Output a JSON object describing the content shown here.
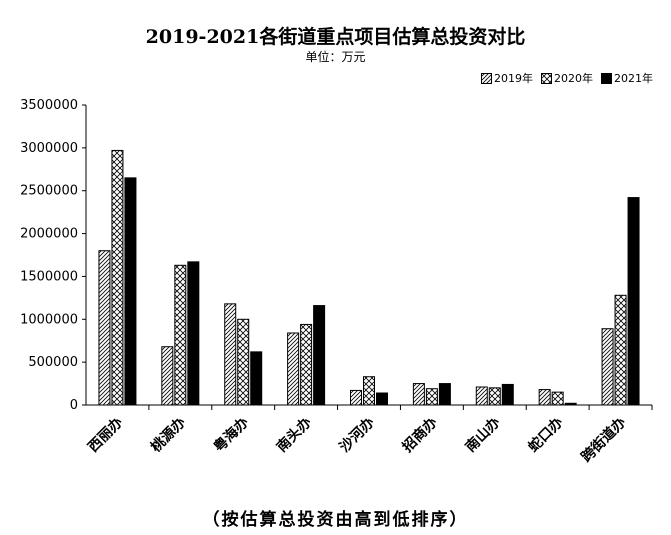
{
  "chart_data": {
    "type": "bar",
    "title": "2019-2021各街道重点项目估算总投资对比",
    "subtitle": "单位：万元",
    "footnote": "（按估算总投资由高到低排序）",
    "categories": [
      "西丽办",
      "桃源办",
      "粤海办",
      "南头办",
      "沙河办",
      "招商办",
      "南山办",
      "蛇口办",
      "跨街道办"
    ],
    "series": [
      {
        "name": "2019年",
        "pattern": "diagonal",
        "values": [
          1800000,
          680000,
          1180000,
          840000,
          170000,
          250000,
          210000,
          180000,
          890000
        ]
      },
      {
        "name": "2020年",
        "pattern": "crosshatch",
        "values": [
          2970000,
          1630000,
          1000000,
          940000,
          330000,
          190000,
          200000,
          150000,
          1280000
        ]
      },
      {
        "name": "2021年",
        "pattern": "solid",
        "values": [
          2650000,
          1670000,
          620000,
          1160000,
          140000,
          250000,
          240000,
          20000,
          2420000
        ]
      }
    ],
    "yticks": [
      "0",
      "500000",
      "1000000",
      "1500000",
      "2000000",
      "2500000",
      "3000000",
      "3500000"
    ],
    "ylim": [
      0,
      3500000
    ],
    "legend_position": "top-right",
    "grid": false
  }
}
